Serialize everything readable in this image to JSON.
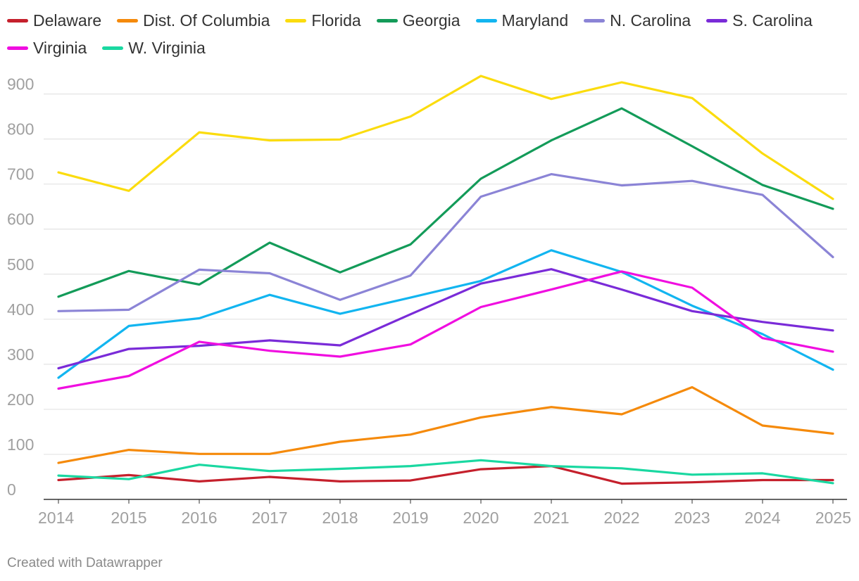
{
  "chart_data": {
    "type": "line",
    "x": [
      2014,
      2015,
      2016,
      2017,
      2018,
      2019,
      2020,
      2021,
      2022,
      2023,
      2024,
      2025
    ],
    "x_tick_labels": [
      "2014",
      "2015",
      "2016",
      "2017",
      "2018",
      "2019",
      "2020",
      "2021",
      "2022",
      "2023",
      "2024",
      "2025"
    ],
    "ylim": [
      0,
      940
    ],
    "y_ticks": [
      0,
      100,
      200,
      300,
      400,
      500,
      600,
      700,
      800,
      900
    ],
    "y_tick_labels": [
      "0",
      "100",
      "200",
      "300",
      "400",
      "500",
      "600",
      "700",
      "800",
      "900"
    ],
    "grid": true,
    "legend_position": "top",
    "series": [
      {
        "name": "Delaware",
        "color": "#c5202c",
        "values": [
          43,
          54,
          40,
          50,
          40,
          42,
          67,
          74,
          35,
          38,
          43,
          43
        ]
      },
      {
        "name": "Dist. Of Columbia",
        "color": "#f58a0b",
        "values": [
          81,
          110,
          101,
          101,
          128,
          144,
          182,
          205,
          189,
          249,
          164,
          146
        ]
      },
      {
        "name": "Florida",
        "color": "#fbdc0e",
        "values": [
          726,
          685,
          815,
          797,
          799,
          850,
          940,
          889,
          926,
          891,
          768,
          667
        ]
      },
      {
        "name": "Georgia",
        "color": "#139b59",
        "values": [
          450,
          507,
          477,
          570,
          504,
          566,
          712,
          797,
          868,
          784,
          698,
          645
        ]
      },
      {
        "name": "Maryland",
        "color": "#12b5f0",
        "values": [
          270,
          385,
          402,
          454,
          412,
          448,
          485,
          553,
          505,
          430,
          367,
          288
        ]
      },
      {
        "name": "N. Carolina",
        "color": "#8b84d6",
        "values": [
          418,
          421,
          510,
          502,
          443,
          497,
          672,
          722,
          697,
          707,
          676,
          538
        ]
      },
      {
        "name": "S. Carolina",
        "color": "#7a2bd8",
        "values": [
          291,
          334,
          341,
          353,
          342,
          411,
          479,
          511,
          466,
          418,
          394,
          375
        ]
      },
      {
        "name": "Virginia",
        "color": "#f00ee0",
        "values": [
          246,
          274,
          350,
          330,
          317,
          344,
          427,
          466,
          506,
          470,
          358,
          328
        ]
      },
      {
        "name": "W. Virginia",
        "color": "#1ad8a1",
        "values": [
          53,
          45,
          77,
          63,
          68,
          74,
          87,
          74,
          69,
          55,
          58,
          36
        ]
      }
    ]
  },
  "footer": {
    "credit": "Created with Datawrapper"
  }
}
